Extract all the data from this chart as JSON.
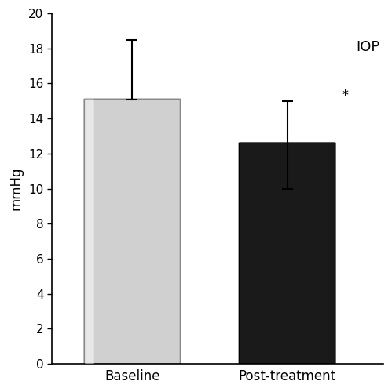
{
  "categories": [
    "Baseline",
    "Post-treatment"
  ],
  "values": [
    15.1,
    12.6
  ],
  "errors_upper": [
    3.4,
    2.4
  ],
  "errors_lower": [
    0.0,
    2.6
  ],
  "bar_colors_main": [
    "#d0d0d0",
    "#1a1a1a"
  ],
  "bar_colors_edge": [
    "#888888",
    "#000000"
  ],
  "ylabel": "mmHg",
  "ylim": [
    0,
    20
  ],
  "yticks": [
    0,
    2,
    4,
    6,
    8,
    10,
    12,
    14,
    16,
    18,
    20
  ],
  "iop_label": "IOP",
  "star_label": "*",
  "background_color": "#ffffff",
  "bar_width": 0.6,
  "error_capsize": 5,
  "error_linewidth": 1.5,
  "figsize": [
    4.99,
    5.0
  ],
  "dpi": 100
}
